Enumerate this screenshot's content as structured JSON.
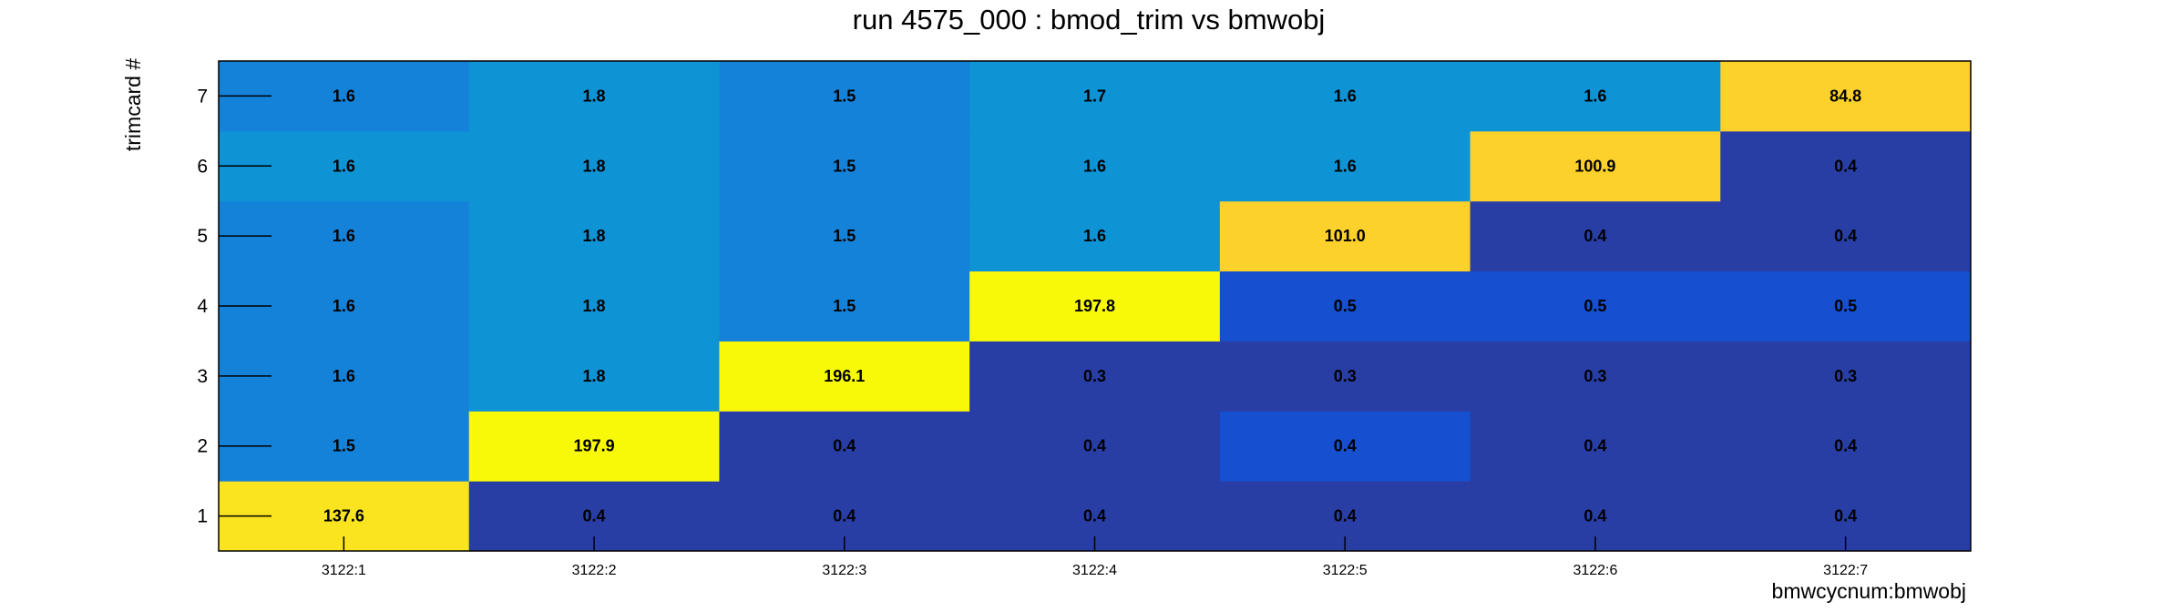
{
  "chart_data": {
    "type": "heatmap",
    "title": "run 4575_000 : bmod_trim vs bmwobj",
    "xlabel": "bmwcycnum:bmwobj",
    "ylabel": "trimcard #",
    "x_categories": [
      "3122:1",
      "3122:2",
      "3122:3",
      "3122:4",
      "3122:5",
      "3122:6",
      "3122:7"
    ],
    "y_categories": [
      "1",
      "2",
      "3",
      "4",
      "5",
      "6",
      "7"
    ],
    "values": [
      [
        "137.6",
        "0.4",
        "0.4",
        "0.4",
        "0.4",
        "0.4",
        "0.4"
      ],
      [
        "1.5",
        "197.9",
        "0.4",
        "0.4",
        "0.4",
        "0.4",
        "0.4"
      ],
      [
        "1.6",
        "1.8",
        "196.1",
        "0.3",
        "0.3",
        "0.3",
        "0.3"
      ],
      [
        "1.6",
        "1.8",
        "1.5",
        "197.8",
        "0.5",
        "0.5",
        "0.5"
      ],
      [
        "1.6",
        "1.8",
        "1.5",
        "1.6",
        "101.0",
        "0.4",
        "0.4"
      ],
      [
        "1.6",
        "1.8",
        "1.5",
        "1.6",
        "1.6",
        "100.9",
        "0.4"
      ],
      [
        "1.6",
        "1.8",
        "1.5",
        "1.7",
        "1.6",
        "1.6",
        "84.8"
      ]
    ],
    "color_palette": [
      "#283ea5",
      "#164fcf",
      "#1582d9",
      "#0e93d4",
      "#fcd12b",
      "#f9e41f",
      "#f8f809"
    ],
    "colors": [
      [
        5,
        0,
        0,
        0,
        0,
        0,
        0
      ],
      [
        2,
        6,
        0,
        0,
        1,
        0,
        0
      ],
      [
        2,
        3,
        6,
        0,
        0,
        0,
        0
      ],
      [
        2,
        3,
        2,
        6,
        1,
        1,
        1
      ],
      [
        2,
        3,
        2,
        3,
        4,
        0,
        0
      ],
      [
        3,
        3,
        2,
        3,
        3,
        4,
        0
      ],
      [
        2,
        3,
        2,
        3,
        3,
        3,
        4
      ]
    ],
    "grid": false,
    "legend": "none"
  }
}
